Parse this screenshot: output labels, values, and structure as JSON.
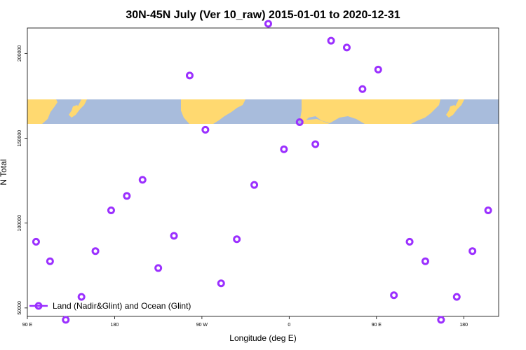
{
  "chart_data": {
    "type": "scatter",
    "title": "30N-45N July (Ver 10_raw)   2015-01-01 to 2020-12-31",
    "xlabel": "Longitude (deg E)",
    "ylabel": "N Total",
    "xlim": [
      -90,
      180
    ],
    "ylim": [
      45000,
      215000
    ],
    "x_ticks": [
      {
        "value": -90,
        "label": "90 E"
      },
      {
        "value": -40,
        "label": "180"
      },
      {
        "value": 10,
        "label": "90 W"
      },
      {
        "value": 60,
        "label": "0"
      },
      {
        "value": 110,
        "label": "90 E"
      },
      {
        "value": 160,
        "label": "180"
      }
    ],
    "y_ticks": [
      {
        "value": 50000,
        "label": "50000"
      },
      {
        "value": 100000,
        "label": "100000"
      },
      {
        "value": 150000,
        "label": "150000"
      },
      {
        "value": 200000,
        "label": "200000"
      }
    ],
    "grid": false,
    "legend_position": "bottom-left",
    "background_map": {
      "description_lat_band": "30N-45N",
      "land_color": "#ffd970",
      "ocean_color": "#a8bcdc"
    },
    "series": [
      {
        "name": "Land (Nadir&Glint) and Ocean (Glint)",
        "color": "#9b30ff",
        "marker": "open-circle",
        "points": [
          {
            "x": -85,
            "y": 89000
          },
          {
            "x": -77,
            "y": 77500
          },
          {
            "x": -68,
            "y": 43000
          },
          {
            "x": -59,
            "y": 56500
          },
          {
            "x": -51,
            "y": 83500
          },
          {
            "x": -42,
            "y": 107500
          },
          {
            "x": -33,
            "y": 116000
          },
          {
            "x": -24,
            "y": 125500
          },
          {
            "x": -15,
            "y": 73500
          },
          {
            "x": -6,
            "y": 92500
          },
          {
            "x": 3,
            "y": 187000
          },
          {
            "x": 12,
            "y": 155000
          },
          {
            "x": 21,
            "y": 64500
          },
          {
            "x": 30,
            "y": 90500
          },
          {
            "x": 40,
            "y": 122500
          },
          {
            "x": 48,
            "y": 217500
          },
          {
            "x": 57,
            "y": 143500
          },
          {
            "x": 66,
            "y": 159500
          },
          {
            "x": 75,
            "y": 146500
          },
          {
            "x": 84,
            "y": 207500
          },
          {
            "x": 93,
            "y": 203500
          },
          {
            "x": 102,
            "y": 179000
          },
          {
            "x": 111,
            "y": 190500
          },
          {
            "x": 120,
            "y": 57500
          },
          {
            "x": 129,
            "y": 89000
          },
          {
            "x": 138,
            "y": 77500
          },
          {
            "x": 147,
            "y": 43000
          },
          {
            "x": 156,
            "y": 56500
          },
          {
            "x": 165,
            "y": 83500
          },
          {
            "x": 174,
            "y": 107500
          }
        ]
      }
    ]
  }
}
